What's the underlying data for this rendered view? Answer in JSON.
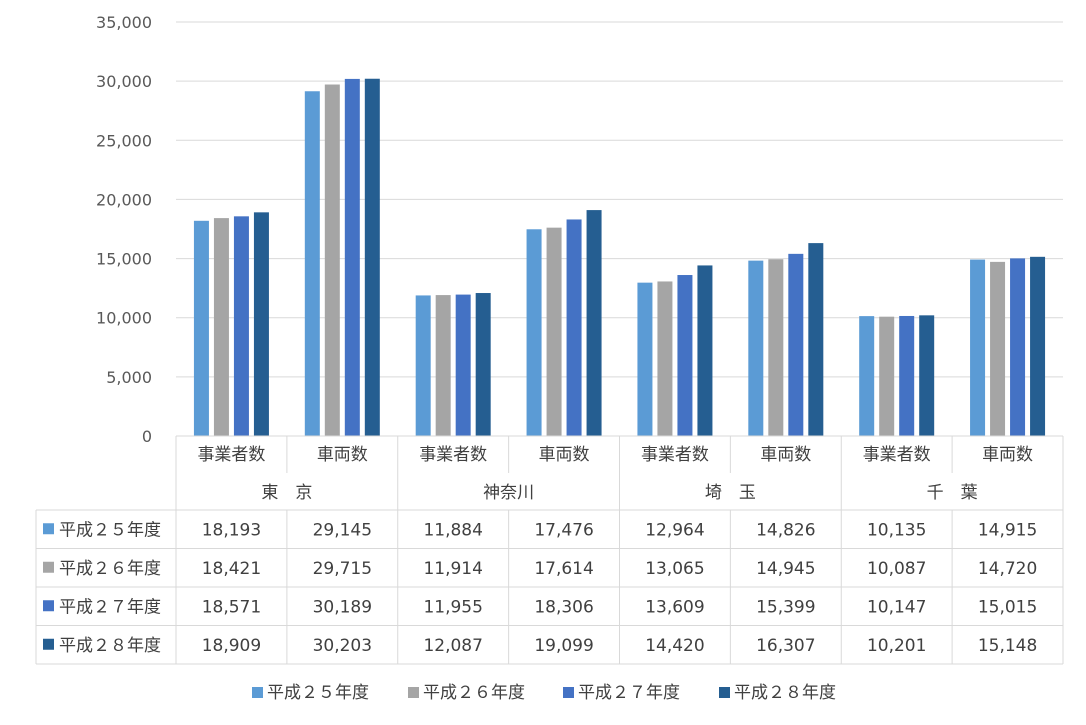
{
  "chart_data": {
    "type": "bar",
    "ylim": [
      0,
      35000
    ],
    "yticks": [
      "35,000",
      "30,000",
      "25,000",
      "20,000",
      "15,000",
      "10,000",
      "5,000",
      "0"
    ],
    "grid": true,
    "legend_position": "bottom",
    "groups": [
      "東　京",
      "神奈川",
      "埼　玉",
      "千　葉"
    ],
    "categories": [
      "事業者数",
      "車両数",
      "事業者数",
      "車両数",
      "事業者数",
      "車両数",
      "事業者数",
      "車両数"
    ],
    "series": [
      {
        "name": "平成２５年度",
        "color": "#5b9bd5",
        "values": [
          18193,
          29145,
          11884,
          17476,
          12964,
          14826,
          10135,
          14915
        ],
        "labels": [
          "18,193",
          "29,145",
          "11,884",
          "17,476",
          "12,964",
          "14,826",
          "10,135",
          "14,915"
        ]
      },
      {
        "name": "平成２６年度",
        "color": "#a5a5a5",
        "values": [
          18421,
          29715,
          11914,
          17614,
          13065,
          14945,
          10087,
          14720
        ],
        "labels": [
          "18,421",
          "29,715",
          "11,914",
          "17,614",
          "13,065",
          "14,945",
          "10,087",
          "14,720"
        ]
      },
      {
        "name": "平成２７年度",
        "color": "#4472c4",
        "values": [
          18571,
          30189,
          11955,
          18306,
          13609,
          15399,
          10147,
          15015
        ],
        "labels": [
          "18,571",
          "30,189",
          "11,955",
          "18,306",
          "13,609",
          "15,399",
          "10,147",
          "15,015"
        ]
      },
      {
        "name": "平成２８年度",
        "color": "#255e91",
        "values": [
          18909,
          30203,
          12087,
          19099,
          14420,
          16307,
          10201,
          15148
        ],
        "labels": [
          "18,909",
          "30,203",
          "12,087",
          "19,099",
          "14,420",
          "16,307",
          "10,201",
          "15,148"
        ]
      }
    ]
  }
}
